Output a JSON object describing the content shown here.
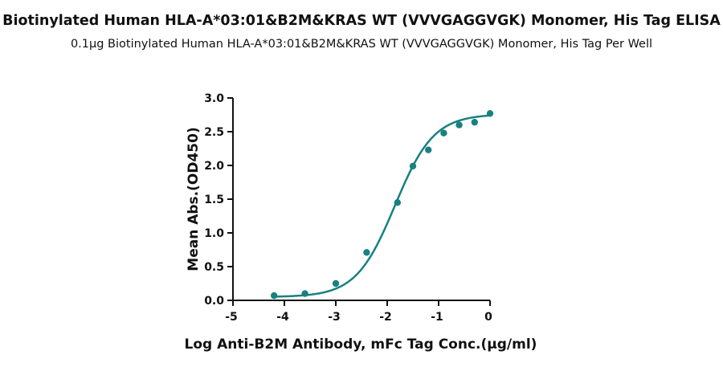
{
  "chart_data": {
    "type": "scatter",
    "title": "Biotinylated Human HLA-A*03:01&B2M&KRAS WT (VVVGAGGVGK) Monomer, His Tag ELISA",
    "subtitle": "0.1μg Biotinylated Human HLA-A*03:01&B2M&KRAS WT (VVVGAGGVGK) Monomer, His Tag Per Well",
    "xlabel": "Log Anti-B2M Antibody, mFc Tag Conc.(μg/ml)",
    "ylabel": "Mean Abs.(OD450)",
    "xlim": [
      -5,
      0
    ],
    "ylim": [
      0,
      3.0
    ],
    "xticks": [
      "-5",
      "-4",
      "-3",
      "-2",
      "-1",
      "0"
    ],
    "yticks": [
      "0.0",
      "0.5",
      "1.0",
      "1.5",
      "2.0",
      "2.5",
      "3.0"
    ],
    "grid": false,
    "legend": "none",
    "color": "#1a8080",
    "series": [
      {
        "x": [
          -4.2,
          -3.6,
          -3.0,
          -2.4,
          -1.8,
          -1.5,
          -1.2,
          -0.9,
          -0.6,
          -0.3,
          0.0
        ],
        "y": [
          0.07,
          0.1,
          0.25,
          0.71,
          1.45,
          1.99,
          2.23,
          2.48,
          2.6,
          2.64,
          2.77
        ]
      }
    ],
    "fit_curve": {
      "model": "4PL",
      "bottom": 0.05,
      "top": 2.76,
      "logEC50": -1.85,
      "hill": 1.15
    }
  }
}
